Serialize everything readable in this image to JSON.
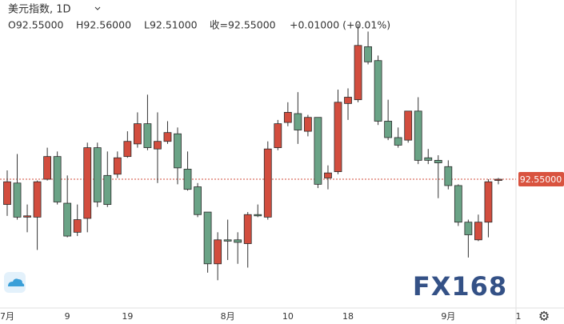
{
  "chart_data": {
    "type": "candlestick",
    "title": "美元指数, 1D",
    "legend_values": [
      "O92.55000",
      "H92.56000",
      "L92.51000",
      "收=92.55000",
      "+0.01000 (+0.01%)"
    ],
    "watermark": "FX168",
    "categories": [
      "7月",
      null,
      null,
      null,
      null,
      null,
      "9",
      null,
      null,
      null,
      null,
      null,
      "19",
      null,
      null,
      null,
      null,
      null,
      null,
      null,
      null,
      null,
      "8月",
      null,
      null,
      null,
      null,
      null,
      "10",
      null,
      null,
      null,
      null,
      null,
      "18",
      null,
      null,
      null,
      null,
      null,
      null,
      null,
      null,
      null,
      "9月",
      null,
      null,
      null,
      null,
      null,
      null,
      "1"
    ],
    "open": [
      92.35,
      92.52,
      92.25,
      92.25,
      92.55,
      92.73,
      92.36,
      92.13,
      92.24,
      92.8,
      92.58,
      92.59,
      92.73,
      92.83,
      92.99,
      92.79,
      92.85,
      92.91,
      92.63,
      92.49,
      92.29,
      91.88,
      92.07,
      92.07,
      92.04,
      92.27,
      92.25,
      92.8,
      93.0,
      93.07,
      92.93,
      93.04,
      92.56,
      92.61,
      93.15,
      93.18,
      93.6,
      93.49,
      93.01,
      92.88,
      92.86,
      93.09,
      92.72,
      92.7,
      92.65,
      92.5,
      92.21,
      92.07,
      92.21,
      92.55,
      null,
      null
    ],
    "high": [
      92.62,
      92.75,
      92.35,
      92.54,
      92.8,
      92.77,
      92.58,
      92.35,
      92.84,
      92.84,
      92.77,
      92.77,
      92.93,
      93.08,
      93.22,
      93.08,
      93.01,
      92.96,
      92.77,
      92.52,
      92.29,
      92.13,
      92.23,
      92.13,
      92.29,
      92.35,
      92.85,
      93.02,
      93.16,
      93.24,
      93.06,
      93.04,
      92.66,
      93.26,
      93.27,
      93.78,
      93.72,
      93.53,
      93.18,
      92.96,
      93.09,
      93.2,
      92.79,
      92.74,
      92.7,
      92.51,
      92.23,
      92.27,
      92.55,
      92.56,
      null,
      null
    ],
    "low": [
      92.26,
      92.23,
      92.13,
      91.99,
      92.54,
      92.35,
      92.09,
      92.1,
      92.13,
      92.33,
      92.33,
      92.56,
      92.72,
      92.8,
      92.78,
      92.52,
      92.83,
      92.51,
      92.46,
      92.25,
      91.81,
      91.75,
      91.91,
      91.88,
      91.85,
      92.25,
      92.23,
      92.78,
      92.97,
      92.83,
      92.89,
      92.48,
      92.47,
      92.59,
      93.02,
      93.16,
      93.46,
      92.98,
      92.86,
      92.8,
      92.84,
      92.67,
      92.67,
      92.4,
      92.47,
      92.18,
      91.93,
      92.06,
      92.09,
      92.51,
      null,
      null
    ],
    "close": [
      92.53,
      92.25,
      92.26,
      92.53,
      92.73,
      92.37,
      92.1,
      92.23,
      92.8,
      92.37,
      92.35,
      92.72,
      92.85,
      92.99,
      92.8,
      92.85,
      92.92,
      92.64,
      92.47,
      92.27,
      91.88,
      92.07,
      92.06,
      92.05,
      92.27,
      92.26,
      92.79,
      92.99,
      93.08,
      92.94,
      93.04,
      92.51,
      92.6,
      93.16,
      93.2,
      93.61,
      93.48,
      93.01,
      92.88,
      92.82,
      93.09,
      92.7,
      92.7,
      92.68,
      92.5,
      92.21,
      92.11,
      92.21,
      92.53,
      92.55,
      null,
      null
    ],
    "up_color": "#d24d3e",
    "down_color": "#6aa386",
    "last_price": {
      "value": 92.55,
      "label": "92.55000"
    },
    "ylim": [
      91.53,
      93.97
    ]
  }
}
